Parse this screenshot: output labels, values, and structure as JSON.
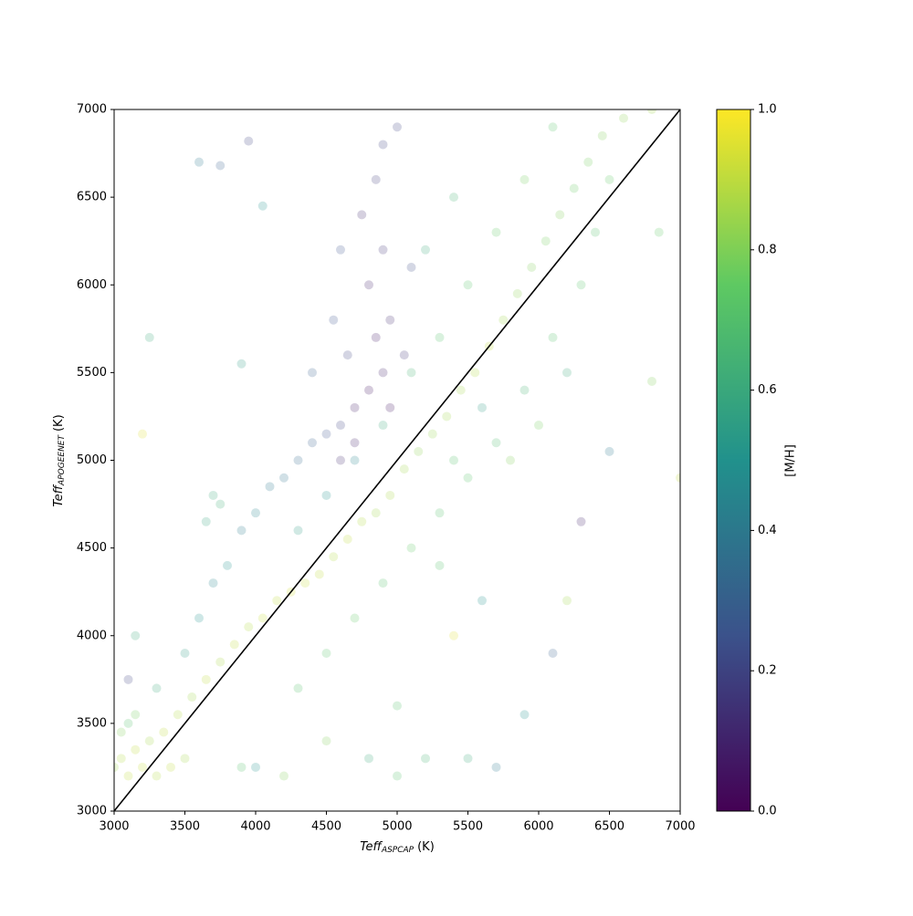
{
  "chart_data": {
    "type": "scatter",
    "xlabel": {
      "main": "Teff",
      "sub": "ASPCAP",
      "unit": "(K)"
    },
    "ylabel": {
      "main": "Teff",
      "sub": "APOGEENET",
      "unit": "(K)"
    },
    "xlim": [
      3000,
      7000
    ],
    "ylim": [
      3000,
      7000
    ],
    "xticks": [
      3000,
      3500,
      4000,
      4500,
      5000,
      5500,
      6000,
      6500,
      7000
    ],
    "yticks": [
      3000,
      3500,
      4000,
      4500,
      5000,
      5500,
      6000,
      6500,
      7000
    ],
    "reference_line": {
      "x": [
        3000,
        7000
      ],
      "y": [
        3000,
        7000
      ],
      "color": "#000000"
    },
    "colorbar": {
      "label": "[M/H]",
      "lim": [
        0,
        1
      ],
      "colormap": "viridis",
      "ticks": [
        {
          "value": 0,
          "label": "0.0"
        },
        {
          "value": 0.2,
          "label": "0.2"
        },
        {
          "value": 0.4,
          "label": "0.4"
        },
        {
          "value": 0.6,
          "label": "0.6"
        },
        {
          "value": 0.8,
          "label": "0.8"
        },
        {
          "value": 1,
          "label": "1.0"
        }
      ]
    },
    "x": [
      3050,
      3150,
      3250,
      3350,
      3450,
      3550,
      3650,
      3750,
      3850,
      3950,
      4050,
      4150,
      4250,
      4350,
      4450,
      4550,
      4650,
      4750,
      4850,
      4950,
      5050,
      5150,
      5250,
      5350,
      5450,
      5550,
      5650,
      5750,
      5850,
      5950,
      6050,
      6150,
      6250,
      6350,
      6450,
      6600,
      6800,
      3100,
      3300,
      3500,
      3600,
      3700,
      3800,
      3900,
      4000,
      4100,
      4200,
      3750,
      3700,
      3650,
      4300,
      4400,
      4500,
      4600,
      4300,
      4500,
      4700,
      4900,
      5100,
      5300,
      5500,
      5700,
      5900,
      6100,
      5200,
      5400,
      4700,
      4800,
      4900,
      4850,
      4950,
      4800,
      4900,
      4750,
      4850,
      4900,
      5000,
      4700,
      4600,
      4950,
      5050,
      4650,
      4550,
      5100,
      4400,
      4600,
      4300,
      4500,
      4700,
      4900,
      5100,
      5300,
      5500,
      5700,
      5900,
      6100,
      6300,
      6400,
      6500,
      5800,
      6000,
      6200,
      5600,
      5400,
      3000,
      3100,
      3200,
      3300,
      3400,
      3500,
      3050,
      3150,
      3250,
      3600,
      3750,
      3950,
      4050,
      3900,
      3200,
      3150,
      3100,
      3900,
      4000,
      4800,
      5000,
      5200,
      5500,
      5700,
      5900,
      6100,
      6300,
      6500,
      6800,
      7000,
      6850,
      5300,
      5600,
      6200,
      5400,
      4200,
      4500,
      5000
    ],
    "values": [
      3300,
      3350,
      3400,
      3450,
      3550,
      3650,
      3750,
      3850,
      3950,
      4050,
      4100,
      4200,
      4250,
      4300,
      4350,
      4450,
      4550,
      4650,
      4700,
      4800,
      4950,
      5050,
      5150,
      5250,
      5400,
      5500,
      5650,
      5800,
      5950,
      6100,
      6250,
      6400,
      6550,
      6700,
      6850,
      6950,
      7000,
      3500,
      3700,
      3900,
      4100,
      4300,
      4400,
      4600,
      4700,
      4850,
      4900,
      4750,
      4800,
      4650,
      5000,
      5100,
      5150,
      5200,
      4600,
      4800,
      5000,
      5200,
      5500,
      5700,
      6000,
      6300,
      6600,
      6900,
      6200,
      6500,
      5300,
      5400,
      5500,
      5700,
      5800,
      6000,
      6200,
      6400,
      6600,
      6800,
      6900,
      5100,
      5000,
      5300,
      5600,
      5600,
      5800,
      6100,
      5500,
      6200,
      3700,
      3900,
      4100,
      4300,
      4500,
      4700,
      4900,
      5100,
      5400,
      5700,
      6000,
      6300,
      6600,
      5000,
      5200,
      5500,
      5300,
      5000,
      3250,
      3200,
      3250,
      3200,
      3250,
      3300,
      3450,
      3550,
      5700,
      6700,
      6680,
      6820,
      6450,
      5550,
      5150,
      4000,
      3750,
      3250,
      3250,
      3300,
      3200,
      3300,
      3300,
      3250,
      3550,
      3900,
      4650,
      5050,
      5450,
      4900,
      6300,
      4400,
      4200,
      4200,
      4000,
      3200,
      3400,
      3600
    ],
    "color_values": [
      0.88,
      0.9,
      0.86,
      0.9,
      0.88,
      0.85,
      0.9,
      0.87,
      0.9,
      0.88,
      0.92,
      0.9,
      0.93,
      0.92,
      0.9,
      0.88,
      0.9,
      0.88,
      0.85,
      0.87,
      0.85,
      0.82,
      0.84,
      0.85,
      0.86,
      0.88,
      0.9,
      0.85,
      0.82,
      0.8,
      0.78,
      0.8,
      0.76,
      0.78,
      0.8,
      0.82,
      0.85,
      0.7,
      0.6,
      0.55,
      0.5,
      0.45,
      0.5,
      0.42,
      0.45,
      0.4,
      0.38,
      0.62,
      0.6,
      0.58,
      0.35,
      0.3,
      0.25,
      0.2,
      0.55,
      0.5,
      0.45,
      0.6,
      0.65,
      0.7,
      0.72,
      0.75,
      0.78,
      0.72,
      0.6,
      0.65,
      0.08,
      0.05,
      0.1,
      0.07,
      0.12,
      0.1,
      0.15,
      0.12,
      0.18,
      0.2,
      0.2,
      0.1,
      0.12,
      0.06,
      0.15,
      0.2,
      0.25,
      0.22,
      0.3,
      0.25,
      0.7,
      0.72,
      0.75,
      0.7,
      0.75,
      0.7,
      0.72,
      0.68,
      0.65,
      0.7,
      0.72,
      0.7,
      0.75,
      0.8,
      0.78,
      0.6,
      0.55,
      0.7,
      0.85,
      0.9,
      0.92,
      0.88,
      0.9,
      0.86,
      0.8,
      0.78,
      0.6,
      0.4,
      0.3,
      0.2,
      0.5,
      0.55,
      0.95,
      0.6,
      0.2,
      0.7,
      0.5,
      0.6,
      0.7,
      0.65,
      0.6,
      0.4,
      0.5,
      0.3,
      0.1,
      0.4,
      0.8,
      0.9,
      0.75,
      0.7,
      0.5,
      0.85,
      0.95,
      0.8,
      0.8,
      0.7
    ]
  }
}
